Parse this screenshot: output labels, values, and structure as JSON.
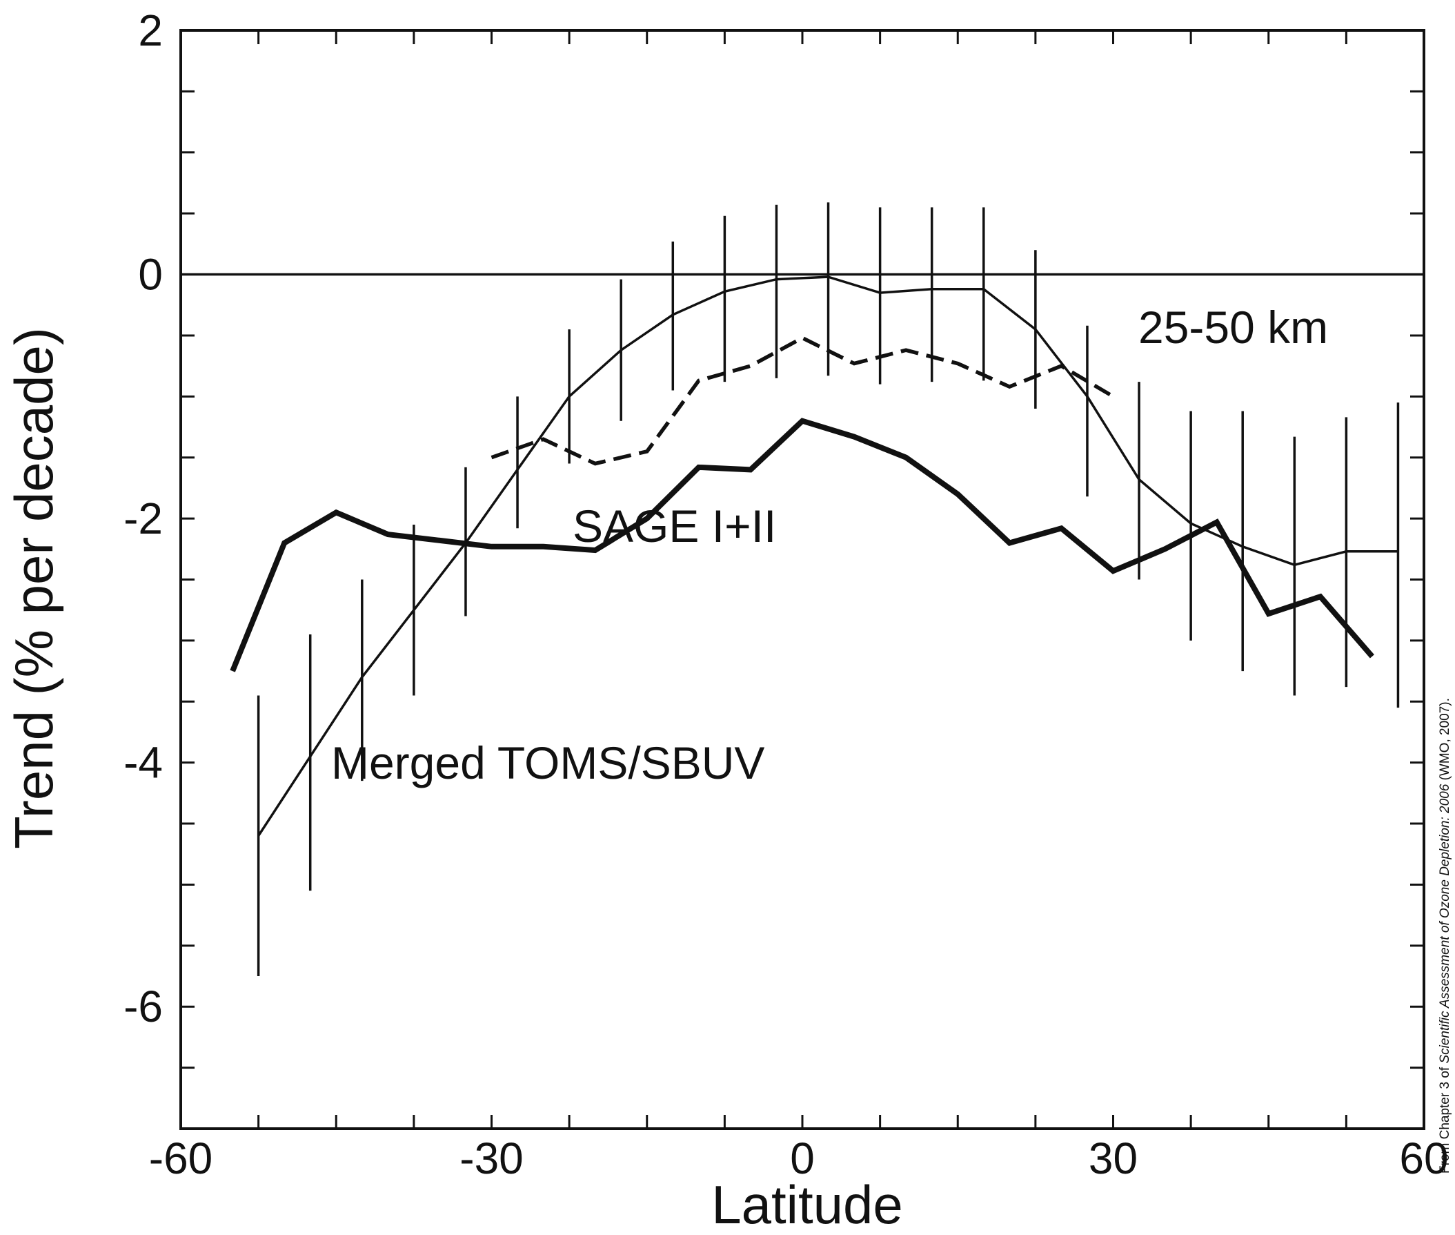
{
  "chart_data": {
    "type": "line",
    "title": "",
    "xlabel": "Latitude",
    "ylabel": "Trend (% per decade)",
    "xlim": [
      -60,
      60
    ],
    "ylim": [
      -7,
      2
    ],
    "x_ticks": [
      "-60",
      "-30",
      "0",
      "30",
      "60"
    ],
    "y_ticks": [
      "2",
      "0",
      "-2",
      "-4",
      "-6"
    ],
    "reference_line_y": 0,
    "grid": false,
    "series": [
      {
        "style": "thick solid",
        "x": [
          -55,
          -50,
          -45,
          -40,
          -35,
          -30,
          -25,
          -20,
          -15,
          -10,
          -5,
          0,
          5,
          10,
          15,
          20,
          25,
          30,
          35,
          40,
          45,
          50,
          55
        ],
        "y": [
          -3.25,
          -2.2,
          -1.95,
          -2.13,
          -2.18,
          -2.23,
          -2.23,
          -2.26,
          -2.0,
          -1.58,
          -1.6,
          -1.2,
          -1.33,
          -1.5,
          -1.8,
          -2.2,
          -2.08,
          -2.43,
          -2.25,
          -2.03,
          -2.78,
          -2.64,
          -3.13
        ]
      },
      {
        "style": "thin solid with error bars",
        "x": [
          -52.5,
          -47.5,
          -42.5,
          -37.5,
          -32.5,
          -27.5,
          -22.5,
          -17.5,
          -12.5,
          -7.5,
          -2.5,
          2.5,
          7.5,
          12.5,
          17.5,
          22.5,
          27.5,
          32.5,
          37.5,
          42.5,
          47.5,
          52.5,
          57.5
        ],
        "y": [
          -4.6,
          -3.95,
          -3.3,
          -2.75,
          -2.2,
          -1.6,
          -1.0,
          -0.62,
          -0.33,
          -0.14,
          -0.04,
          -0.02,
          -0.15,
          -0.12,
          -0.12,
          -0.45,
          -1.0,
          -1.68,
          -2.04,
          -2.23,
          -2.38,
          -2.27,
          -2.27
        ],
        "error_low": [
          -5.75,
          -5.05,
          -4.15,
          -3.45,
          -2.8,
          -2.08,
          -1.55,
          -1.2,
          -0.95,
          -0.88,
          -0.85,
          -0.83,
          -0.9,
          -0.88,
          -0.87,
          -1.1,
          -1.82,
          -2.5,
          -3.0,
          -3.25,
          -3.45,
          -3.38,
          -3.55
        ],
        "error_high": [
          -3.45,
          -2.95,
          -2.5,
          -2.05,
          -1.58,
          -1.0,
          -0.45,
          -0.04,
          0.27,
          0.48,
          0.57,
          0.59,
          0.55,
          0.55,
          0.55,
          0.2,
          -0.42,
          -0.88,
          -1.12,
          -1.12,
          -1.33,
          -1.17,
          -1.05
        ]
      },
      {
        "style": "dashed",
        "x": [
          -30,
          -25,
          -20,
          -15,
          -10,
          -5,
          0,
          5,
          10,
          15,
          20,
          25,
          30
        ],
        "y": [
          -1.5,
          -1.35,
          -1.55,
          -1.45,
          -0.87,
          -0.75,
          -0.52,
          -0.73,
          -0.62,
          -0.73,
          -0.92,
          -0.75,
          -1.0
        ]
      }
    ],
    "annotations": [
      "25-50 km",
      "SAGE I+II",
      "Merged TOMS/SBUV"
    ]
  },
  "source_note": {
    "prefix": "From Chapter 3 of ",
    "italic": "Scientific Assessment of Ozone Depletion: 2006",
    "suffix": " (WMO, 2007)."
  }
}
